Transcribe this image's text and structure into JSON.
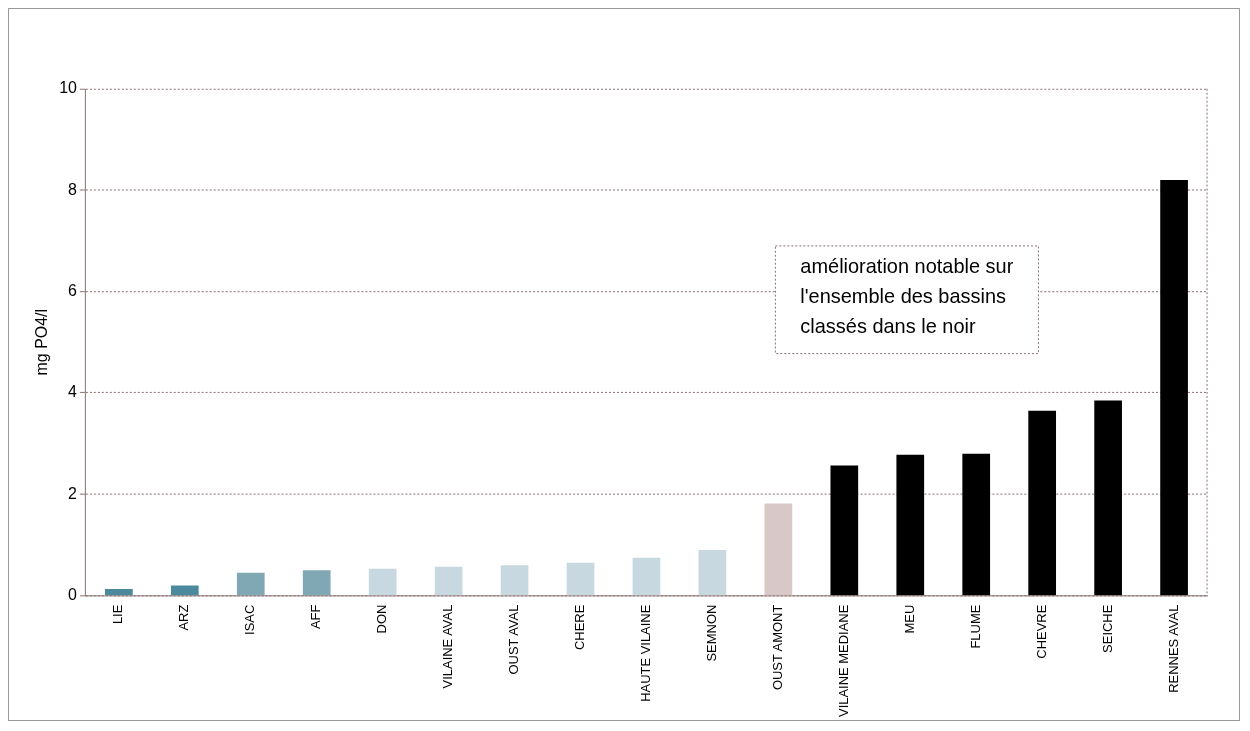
{
  "chart_data": {
    "type": "bar",
    "ylabel": "mg PO4/l",
    "categories": [
      "LIE",
      "ARZ",
      "ISAC",
      "AFF",
      "DON",
      "VILAINE AVAL",
      "OUST AVAL",
      "CHERE",
      "HAUTE VILAINE",
      "SEMNON",
      "OUST AMONT",
      "VILAINE MEDIANE",
      "MEU",
      "FLUME",
      "CHEVRE",
      "SEICHE",
      "RENNES AVAL"
    ],
    "values": [
      0.13,
      0.2,
      0.45,
      0.5,
      0.53,
      0.57,
      0.6,
      0.65,
      0.75,
      0.9,
      1.82,
      2.57,
      2.78,
      2.8,
      3.65,
      3.85,
      8.2
    ],
    "colors": [
      "#4a8a9c",
      "#4a8a9c",
      "#7fa8b4",
      "#7fa8b4",
      "#c8d8e0",
      "#c8d8e0",
      "#c8d8e0",
      "#c8d8e0",
      "#c8d8e0",
      "#c8d8e0",
      "#d8c8c8",
      "#000000",
      "#000000",
      "#000000",
      "#000000",
      "#000000",
      "#000000"
    ],
    "ylim": [
      0,
      10
    ],
    "yticks": [
      0,
      2,
      4,
      6,
      8,
      10
    ],
    "grid": "y",
    "legend": false,
    "annotations": [
      "amélioration notable sur\nl'ensemble des bassins\nclassés dans le noir"
    ]
  }
}
